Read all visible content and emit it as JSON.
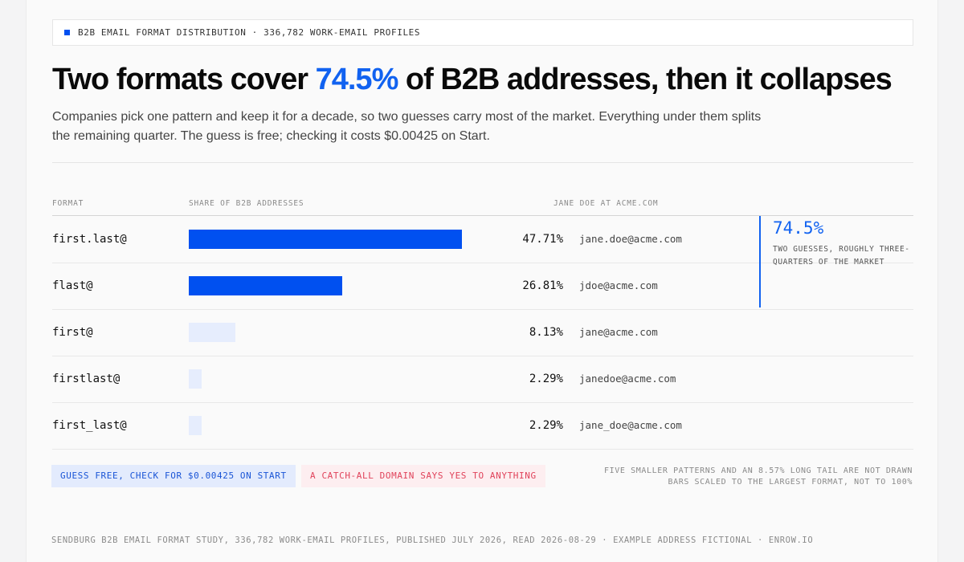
{
  "tag": "B2B EMAIL FORMAT DISTRIBUTION · 336,782 WORK-EMAIL PROFILES",
  "headline": {
    "before": "Two formats cover ",
    "accent": "74.5%",
    "after": " of B2B addresses, then it collapses"
  },
  "subtitle": "Companies pick one pattern and keep it for a decade, so two guesses carry most of the market. Everything under them splits the remaining quarter. The guess is free; checking it costs $0.00425 on Start.",
  "columns": {
    "format": "FORMAT",
    "share": "SHARE OF B2B ADDRESSES",
    "example": "JANE DOE AT ACME.COM"
  },
  "colors": {
    "accent": "#0050f0",
    "accent_text": "#1162f0",
    "bar_minor": "#e6edfd",
    "danger": "#e0425a"
  },
  "chart_data": {
    "type": "bar",
    "orientation": "horizontal",
    "categories": [
      "first.last@",
      "flast@",
      "first@",
      "firstlast@",
      "first_last@"
    ],
    "values": [
      47.71,
      26.81,
      8.13,
      2.29,
      2.29
    ],
    "value_labels": [
      "47.71%",
      "26.81%",
      "8.13%",
      "2.29%",
      "2.29%"
    ],
    "examples": [
      "jane.doe@acme.com",
      "jdoe@acme.com",
      "jane@acme.com",
      "janedoe@acme.com",
      "jane_doe@acme.com"
    ],
    "highlighted": [
      true,
      true,
      false,
      false,
      false
    ],
    "xlim": [
      0,
      47.71
    ],
    "ylabel": "FORMAT",
    "xlabel": "SHARE OF B2B ADDRESSES"
  },
  "callout": {
    "value": "74.5%",
    "label": "TWO GUESSES, ROUGHLY THREE-QUARTERS OF THE MARKET"
  },
  "pills": {
    "guess": "GUESS FREE, CHECK FOR $0.00425 ON START",
    "catchall": "A CATCH-ALL DOMAIN SAYS YES TO ANYTHING"
  },
  "notes": {
    "line1": "FIVE SMALLER PATTERNS AND AN 8.57% LONG TAIL ARE NOT DRAWN",
    "line2": "BARS SCALED TO THE LARGEST FORMAT, NOT TO 100%"
  },
  "footer": "SENDBURG B2B EMAIL FORMAT STUDY, 336,782 WORK-EMAIL PROFILES, PUBLISHED JULY 2026, READ 2026-08-29 · EXAMPLE ADDRESS FICTIONAL · ENROW.IO"
}
